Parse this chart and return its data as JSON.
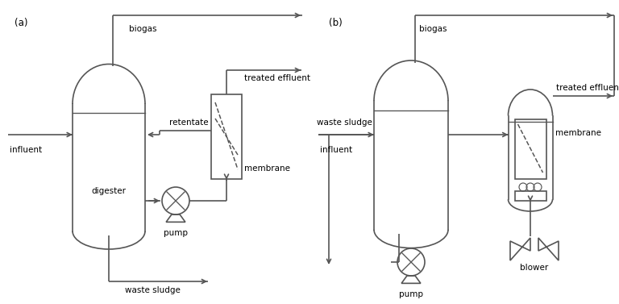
{
  "bg_color": "#ffffff",
  "line_color": "#555555",
  "text_color": "#000000",
  "font_size": 7.5,
  "label_a": "(a)",
  "label_b": "(b)",
  "label_digester": "digester",
  "label_influent": "influent",
  "label_biogas_a": "biogas",
  "label_biogas_b": "biogas",
  "label_waste_sludge_a": "waste sludge",
  "label_waste_sludge_b": "waste sludge",
  "label_retentate": "retentate",
  "label_treated_a": "treated effluent",
  "label_treated_b": "treated effluent",
  "label_membrane_a": "membrane",
  "label_membrane_b": "membrane",
  "label_pump_a": "pump",
  "label_pump_b": "pump",
  "label_blower": "blower"
}
